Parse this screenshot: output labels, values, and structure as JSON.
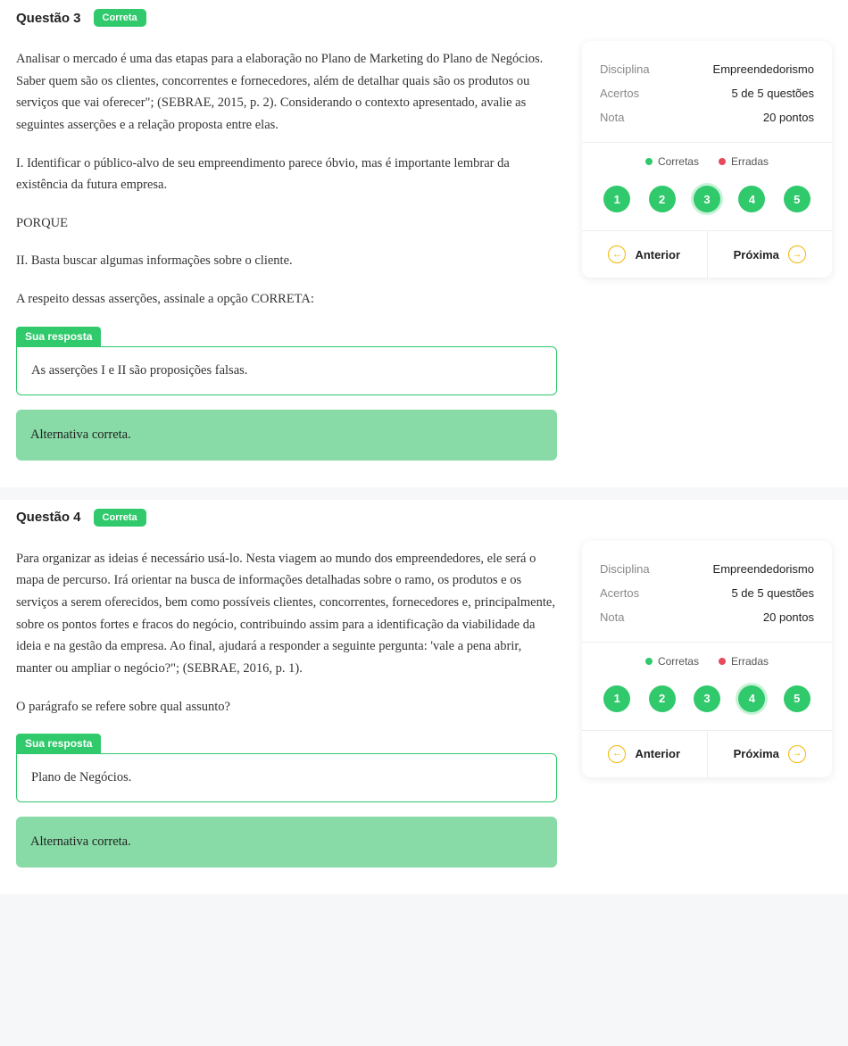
{
  "colors": {
    "accent_green": "#30c96b",
    "feedback_green": "#88dba6",
    "legend_red": "#e64a5b",
    "nav_yellow": "#f0b600",
    "card_bg": "#ffffff",
    "page_bg": "#f6f7f9",
    "meta_label": "#888888",
    "text": "#333333"
  },
  "labels": {
    "answer_tag": "Sua resposta",
    "correct_badge": "Correta",
    "legend_correct": "Corretas",
    "legend_wrong": "Erradas",
    "prev": "Anterior",
    "next": "Próxima",
    "meta_discipline": "Disciplina",
    "meta_hits": "Acertos",
    "meta_score": "Nota"
  },
  "questions": [
    {
      "number": "Questão 3",
      "status": "Correta",
      "paragraphs": [
        "Analisar o mercado é uma das etapas para a elaboração no Plano de Marketing do Plano de Negócios. Saber quem são os clientes, concorrentes e fornecedores, além de detalhar quais são os produtos ou serviços que vai oferecer\"; (SEBRAE, 2015, p. 2). Considerando o contexto apresentado, avalie as seguintes asserções e a relação proposta entre elas.",
        "I. Identificar o público-alvo de seu empreendimento parece óbvio, mas é importante lembrar da existência da futura empresa.",
        "PORQUE",
        "II. Basta buscar algumas informações sobre o cliente.",
        "A respeito dessas asserções, assinale a opção CORRETA:"
      ],
      "answer": "As asserções I e II são proposições falsas.",
      "feedback": "Alternativa correta.",
      "side": {
        "discipline": "Empreendedorismo",
        "hits": "5 de 5 questões",
        "score": "20 pontos",
        "dots": [
          "1",
          "2",
          "3",
          "4",
          "5"
        ],
        "active": 3
      }
    },
    {
      "number": "Questão 4",
      "status": "Correta",
      "paragraphs": [
        "Para organizar as ideias é necessário usá-lo. Nesta viagem ao mundo dos empreendedores, ele será o mapa de percurso. Irá orientar na busca de informações detalhadas sobre o ramo, os produtos e os serviços a serem oferecidos, bem como possíveis clientes, concorrentes, fornecedores e, principalmente, sobre os pontos fortes e fracos do negócio, contribuindo assim para a identificação da viabilidade da ideia e na gestão da empresa. Ao final, ajudará a responder a seguinte pergunta: 'vale a pena abrir, manter ou ampliar o negócio?\"; (SEBRAE, 2016, p. 1).",
        "O parágrafo se refere sobre qual assunto?"
      ],
      "answer": "Plano de Negócios.",
      "feedback": "Alternativa correta.",
      "side": {
        "discipline": "Empreendedorismo",
        "hits": "5 de 5 questões",
        "score": "20 pontos",
        "dots": [
          "1",
          "2",
          "3",
          "4",
          "5"
        ],
        "active": 4
      }
    }
  ]
}
